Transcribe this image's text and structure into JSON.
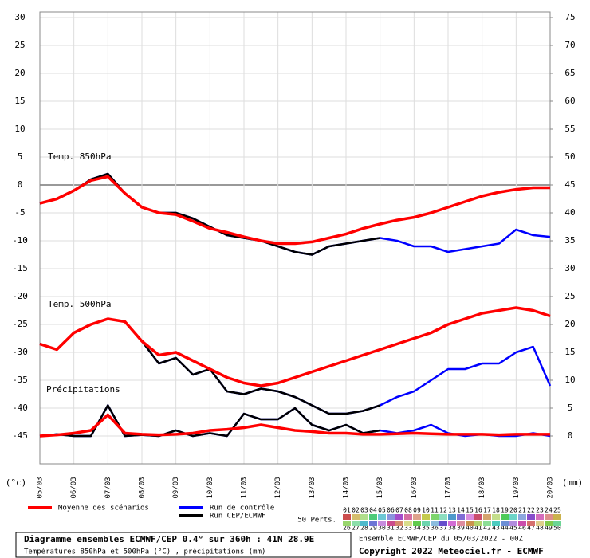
{
  "chart_data": {
    "type": "line",
    "x": [
      0,
      0.5,
      1,
      1.5,
      2,
      2.5,
      3,
      3.5,
      4,
      4.5,
      5,
      5.5,
      6,
      6.5,
      7,
      7.5,
      8,
      8.5,
      9,
      9.5,
      10,
      10.5,
      11,
      11.5,
      12,
      12.5,
      13,
      13.5,
      14,
      14.5,
      15
    ],
    "xlim": [
      0,
      15
    ],
    "xticks": [
      {
        "value": 0,
        "label": "05/03"
      },
      {
        "value": 1,
        "label": "06/03"
      },
      {
        "value": 2,
        "label": "07/03"
      },
      {
        "value": 3,
        "label": "08/03"
      },
      {
        "value": 4,
        "label": "09/03"
      },
      {
        "value": 5,
        "label": "10/03"
      },
      {
        "value": 6,
        "label": "11/03"
      },
      {
        "value": 7,
        "label": "12/03"
      },
      {
        "value": 8,
        "label": "13/03"
      },
      {
        "value": 9,
        "label": "14/03"
      },
      {
        "value": 10,
        "label": "15/03"
      },
      {
        "value": 11,
        "label": "16/03"
      },
      {
        "value": 12,
        "label": "17/03"
      },
      {
        "value": 13,
        "label": "18/03"
      },
      {
        "value": 14,
        "label": "19/03"
      },
      {
        "value": 15,
        "label": "20/03"
      }
    ],
    "ylim": [
      -50,
      31
    ],
    "yticks": [
      -45,
      -40,
      -35,
      -30,
      -25,
      -20,
      -15,
      -10,
      -5,
      0,
      5,
      10,
      15,
      20,
      25,
      30
    ],
    "y2lim": [
      -5,
      76
    ],
    "y2ticks": [
      0,
      5,
      10,
      15,
      20,
      25,
      30,
      35,
      40,
      45,
      50,
      55,
      60,
      65,
      70,
      75
    ],
    "ylabel": "(°c)",
    "y2label": "(mm)",
    "grid": true,
    "panels": [
      {
        "label": "Temp. 850hPa",
        "series": [
          {
            "name": "Run de contrôle",
            "color": "#0000ff",
            "values": [
              -3.3,
              -2.5,
              -1,
              1,
              2,
              -1.5,
              -4,
              -5,
              -5,
              -6,
              -7.5,
              -9,
              -9.5,
              -10,
              -11,
              -12,
              -12.5,
              -11,
              -10.5,
              -10,
              -9.5,
              -10,
              -11,
              -11,
              -12,
              -11.5,
              -11,
              -10.5,
              -8,
              -9,
              -9.3
            ]
          },
          {
            "name": "Run CEP/ECMWF",
            "color": "#000000",
            "values": [
              -3.3,
              -2.5,
              -1,
              1,
              2,
              -1.5,
              -4,
              -5,
              -5,
              -6,
              -7.5,
              -9,
              -9.5,
              -10,
              -11,
              -12,
              -12.5,
              -11,
              -10.5,
              -10,
              -9.5,
              null,
              null,
              null,
              null,
              null,
              null,
              null,
              null,
              null,
              null
            ]
          },
          {
            "name": "Moyenne des scénarios",
            "color": "#ff0000",
            "values": [
              -3.3,
              -2.5,
              -1,
              0.8,
              1.5,
              -1.5,
              -4,
              -5,
              -5.3,
              -6.5,
              -7.8,
              -8.5,
              -9.3,
              -10,
              -10.5,
              -10.5,
              -10.2,
              -9.5,
              -8.8,
              -7.8,
              -7,
              -6.3,
              -5.8,
              -5,
              -4,
              -3,
              -2,
              -1.3,
              -0.8,
              -0.5,
              -0.5
            ]
          }
        ]
      },
      {
        "label": "Temp. 500hPa",
        "series": [
          {
            "name": "Run de contrôle",
            "color": "#0000ff",
            "values": [
              -28.5,
              -29.5,
              -26.5,
              -25,
              -24,
              -24.5,
              -28,
              -32,
              -31,
              -34,
              -33,
              -37,
              -37.5,
              -36.5,
              -37,
              -38,
              -39.5,
              -41,
              -41,
              -40.5,
              -39.5,
              -38,
              -37,
              -35,
              -33,
              -33,
              -32,
              -32,
              -30,
              -29,
              -36
            ]
          },
          {
            "name": "Run CEP/ECMWF",
            "color": "#000000",
            "values": [
              -28.5,
              -29.5,
              -26.5,
              -25,
              -24,
              -24.5,
              -28,
              -32,
              -31,
              -34,
              -33,
              -37,
              -37.5,
              -36.5,
              -37,
              -38,
              -39.5,
              -41,
              -41,
              -40.5,
              -39.5,
              null,
              null,
              null,
              null,
              null,
              null,
              null,
              null,
              null,
              null
            ]
          },
          {
            "name": "Moyenne des scénarios",
            "color": "#ff0000",
            "values": [
              -28.5,
              -29.5,
              -26.5,
              -25,
              -24,
              -24.5,
              -28,
              -30.5,
              -30,
              -31.5,
              -33,
              -34.5,
              -35.5,
              -36,
              -35.5,
              -34.5,
              -33.5,
              -32.5,
              -31.5,
              -30.5,
              -29.5,
              -28.5,
              -27.5,
              -26.5,
              -25,
              -24,
              -23,
              -22.5,
              -22,
              -22.5,
              -23.5
            ]
          }
        ]
      },
      {
        "label": "Précipitations",
        "series": [
          {
            "name": "Run de contrôle",
            "color": "#0000ff",
            "axis": "y2",
            "values": [
              0,
              0.3,
              0,
              0,
              5.5,
              0,
              0.2,
              0,
              1,
              0,
              0.5,
              0,
              4,
              3,
              3,
              5,
              2,
              1,
              2,
              0.5,
              1,
              0.5,
              1,
              2,
              0.5,
              0,
              0.3,
              0,
              0,
              0.5,
              0
            ]
          },
          {
            "name": "Run CEP/ECMWF",
            "color": "#000000",
            "axis": "y2",
            "values": [
              0,
              0.3,
              0,
              0,
              5.5,
              0,
              0.2,
              0,
              1,
              0,
              0.5,
              0,
              4,
              3,
              3,
              5,
              2,
              1,
              2,
              0.5,
              1,
              null,
              null,
              null,
              null,
              null,
              null,
              null,
              null,
              null,
              null
            ]
          },
          {
            "name": "Moyenne des scénarios",
            "color": "#ff0000",
            "axis": "y2",
            "values": [
              0,
              0.2,
              0.5,
              1,
              3.8,
              0.5,
              0.3,
              0.2,
              0.3,
              0.5,
              1,
              1.2,
              1.5,
              2,
              1.5,
              1,
              0.8,
              0.5,
              0.5,
              0.3,
              0.3,
              0.4,
              0.5,
              0.4,
              0.3,
              0.3,
              0.3,
              0.2,
              0.3,
              0.3,
              0.3
            ]
          }
        ]
      }
    ],
    "perturbations_label": "50 Perts.",
    "perturbations": [
      "01",
      "02",
      "03",
      "04",
      "05",
      "06",
      "07",
      "08",
      "09",
      "10",
      "11",
      "12",
      "13",
      "14",
      "15",
      "16",
      "17",
      "18",
      "19",
      "20",
      "21",
      "22",
      "23",
      "24",
      "25",
      "26",
      "27",
      "28",
      "29",
      "30",
      "31",
      "32",
      "33",
      "34",
      "35",
      "36",
      "37",
      "38",
      "39",
      "40",
      "41",
      "42",
      "43",
      "44",
      "45",
      "46",
      "47",
      "48",
      "49",
      "50"
    ],
    "info_title": "Diagramme ensembles ECMWF/CEP 0.4° sur 360h : 41N 28.9E",
    "info_subtitle": "Températures 850hPa et 500hPa (°C) , précipitations (mm)",
    "run_info": "Ensemble ECMWF/CEP du 05/03/2022 - 00Z",
    "copyright": "Copyright 2022 Meteociel.fr - ECMWF"
  }
}
